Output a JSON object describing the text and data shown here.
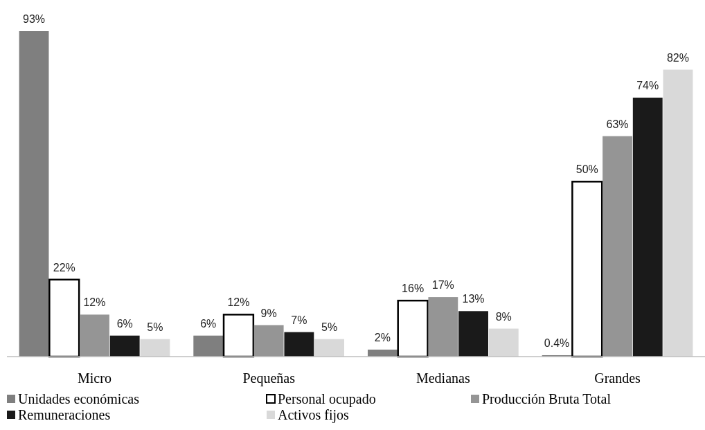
{
  "chart_data": {
    "type": "bar",
    "categories": [
      "Micro",
      "Pequeñas",
      "Medianas",
      "Grandes"
    ],
    "legend": "bottom",
    "series": [
      {
        "name": "Unidades económicas",
        "color": "#7f7f7f",
        "values": [
          93,
          6,
          2,
          0.4
        ],
        "value_labels": [
          "93%",
          "6%",
          "2%",
          "0.4%"
        ]
      },
      {
        "name": "Personal ocupado",
        "color": "#ffffff",
        "values": [
          22,
          12,
          16,
          50
        ],
        "value_labels": [
          "22%",
          "12%",
          "16%",
          "50%"
        ]
      },
      {
        "name": "Producción Bruta Total",
        "color": "#959595",
        "values": [
          12,
          9,
          17,
          63
        ],
        "value_labels": [
          "12%",
          "9%",
          "17%",
          "63%"
        ]
      },
      {
        "name": "Remuneraciones",
        "color": "#1a1a1a",
        "values": [
          6,
          7,
          13,
          74
        ],
        "value_labels": [
          "6%",
          "7%",
          "13%",
          "74%"
        ]
      },
      {
        "name": "Activos fijos",
        "color": "#d9d9d9",
        "values": [
          5,
          5,
          8,
          82
        ],
        "value_labels": [
          "5%",
          "5%",
          "8%",
          "82%"
        ]
      }
    ]
  }
}
